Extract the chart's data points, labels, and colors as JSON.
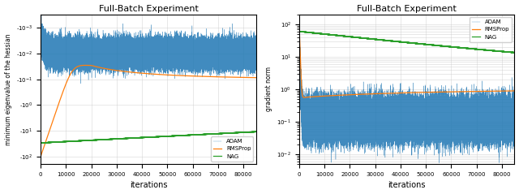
{
  "title": "Full-Batch Experiment",
  "xlabel": "iterations",
  "left_ylabel": "minimum eigenvalue of the hessian",
  "right_ylabel": "gradient norm",
  "xlim": [
    0,
    85000
  ],
  "xticks": [
    0,
    10000,
    20000,
    30000,
    40000,
    50000,
    60000,
    70000,
    80000
  ],
  "xtick_labels": [
    "0",
    "10000",
    "20000",
    "30000",
    "40000",
    "50000",
    "60000",
    "70000",
    "80000"
  ],
  "colors": {
    "ADAM": "#1f77b4",
    "RMSProp": "#ff7f0e",
    "NAG": "#2ca02c"
  },
  "legend_labels": [
    "ADAM",
    "RMSProp",
    "NAG"
  ],
  "n_points": 85000,
  "seed": 42,
  "left_yticks": [
    -0.001,
    -0.01,
    -0.1,
    -1.0,
    -10.0,
    -100.0
  ],
  "left_ytick_labels": [
    "-10$^{-3}$",
    "-10$^{-2}$",
    "-10$^{-1}$",
    "-10$^{0}$",
    "-10$^{1}$",
    "-10$^{2}$"
  ],
  "right_yticks": [
    0.01,
    0.1,
    1.0,
    10.0,
    100.0
  ],
  "right_ytick_labels": [
    "10$^{-2}$",
    "10$^{-1}$",
    "10$^{0}$",
    "10$^{1}$",
    "10$^{2}$"
  ]
}
